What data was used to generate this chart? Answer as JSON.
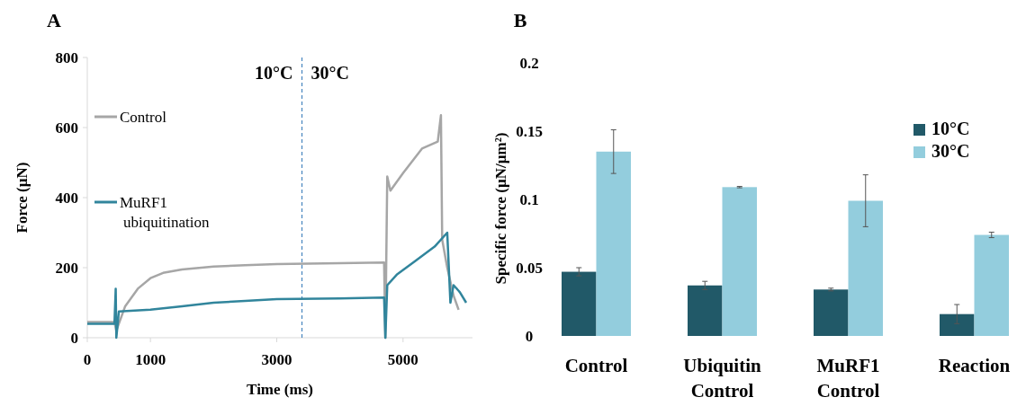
{
  "chart_data": [
    {
      "type": "line",
      "title": "A",
      "xlabel": "Time (ms)",
      "ylabel": "Force (µN)",
      "xlim": [
        0,
        6100
      ],
      "ylim": [
        0,
        800
      ],
      "xticks": [
        0,
        1000,
        3000,
        5000
      ],
      "yticks": [
        0,
        200,
        400,
        600,
        800
      ],
      "legend": "left",
      "grid": false,
      "annotations": [
        "10°C",
        "30°C"
      ],
      "ref_lines": [
        {
          "axis": "x",
          "value": 3400,
          "color": "#2e75b6",
          "line_style": "dashed"
        }
      ],
      "series": [
        {
          "name": "Control",
          "color": "#a6a6a6",
          "x": [
            0,
            430,
            460,
            600,
            800,
            1000,
            1200,
            1500,
            2000,
            2500,
            3000,
            4000,
            4700,
            4720,
            4750,
            4800,
            5000,
            5300,
            5550,
            5600,
            5620,
            5700,
            5800,
            5880
          ],
          "values": [
            45,
            45,
            20,
            90,
            140,
            170,
            185,
            195,
            203,
            207,
            210,
            213,
            215,
            0,
            460,
            420,
            470,
            540,
            560,
            635,
            280,
            200,
            120,
            80
          ]
        },
        {
          "name": "MuRF1 ubiquitination",
          "color": "#31859c",
          "x": [
            0,
            430,
            450,
            460,
            500,
            1000,
            1500,
            2000,
            2500,
            3000,
            4000,
            4700,
            4720,
            4750,
            4900,
            5200,
            5500,
            5700,
            5750,
            5800,
            5900,
            6000
          ],
          "values": [
            40,
            40,
            140,
            0,
            75,
            80,
            90,
            100,
            105,
            110,
            112,
            115,
            0,
            150,
            180,
            220,
            260,
            300,
            100,
            150,
            130,
            100
          ]
        }
      ]
    },
    {
      "type": "bar",
      "title": "B",
      "ylabel": "Specific force (µN/µm²)",
      "categories": [
        "Control",
        "Ubiquitin Control",
        "MuRF1 Control",
        "Reaction"
      ],
      "ylim": [
        0,
        0.2
      ],
      "yticks": [
        0,
        0.05,
        0.1,
        0.15,
        0.2
      ],
      "legend": "top right",
      "grid": false,
      "series": [
        {
          "name": "10°C",
          "color": "#215968",
          "values": [
            0.047,
            0.037,
            0.034,
            0.016
          ],
          "errors": [
            0.003,
            0.003,
            0.001,
            0.007
          ]
        },
        {
          "name": "30°C",
          "color": "#93cddd",
          "values": [
            0.135,
            0.109,
            0.099,
            0.074
          ],
          "errors": [
            0.016,
            0.0005,
            0.019,
            0.002
          ]
        }
      ]
    }
  ]
}
